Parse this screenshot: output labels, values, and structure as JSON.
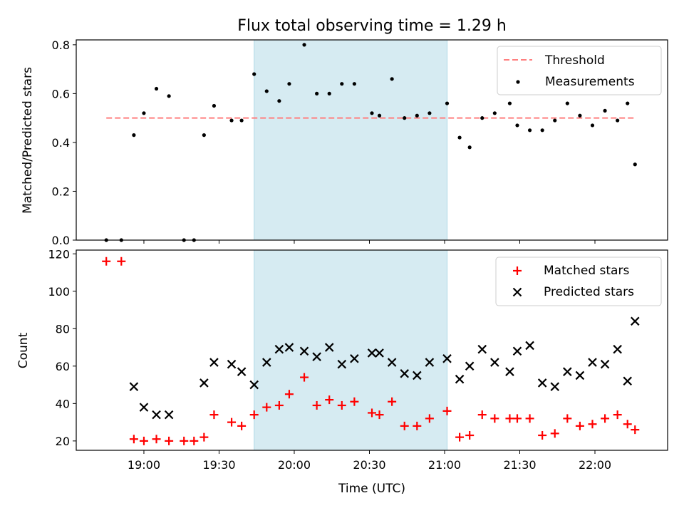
{
  "chart_data": {
    "type": "scatter",
    "title": "Flux total observing time = 1.29 h",
    "xlabel": "Time (UTC)",
    "x_tick_labels": [
      "19:00",
      "19:30",
      "20:00",
      "20:30",
      "21:00",
      "21:30",
      "22:00"
    ],
    "x_range": [
      "18:33",
      "22:29"
    ],
    "highlight_span": [
      "19:44",
      "21:01"
    ],
    "colors": {
      "threshold": "#ff7f7f",
      "measurements": "#000000",
      "matched": "#ff0000",
      "predicted": "#000000",
      "span": "#add8e6"
    },
    "panels": [
      {
        "ylabel": "Matched/Predicted stars",
        "ylim": [
          0,
          0.82
        ],
        "yticks": [
          "0.0",
          "0.2",
          "0.4",
          "0.6",
          "0.8"
        ],
        "legend_position": "top-right",
        "threshold": {
          "name": "Threshold",
          "value": 0.5,
          "x_start": "18:45",
          "x_end": "22:16"
        },
        "series": [
          {
            "name": "Measurements",
            "x": [
              "18:45",
              "18:51",
              "18:56",
              "19:00",
              "19:05",
              "19:10",
              "19:16",
              "19:20",
              "19:24",
              "19:28",
              "19:35",
              "19:39",
              "19:44",
              "19:49",
              "19:54",
              "19:58",
              "20:04",
              "20:09",
              "20:14",
              "20:19",
              "20:24",
              "20:31",
              "20:34",
              "20:39",
              "20:44",
              "20:49",
              "20:54",
              "21:01",
              "21:06",
              "21:10",
              "21:15",
              "21:20",
              "21:26",
              "21:29",
              "21:34",
              "21:39",
              "21:44",
              "21:49",
              "21:54",
              "21:59",
              "22:04",
              "22:09",
              "22:13",
              "22:16"
            ],
            "y": [
              0.0,
              0.0,
              0.43,
              0.52,
              0.62,
              0.59,
              0.0,
              0.0,
              0.43,
              0.55,
              0.49,
              0.49,
              0.68,
              0.61,
              0.57,
              0.64,
              0.8,
              0.6,
              0.6,
              0.64,
              0.64,
              0.52,
              0.51,
              0.66,
              0.5,
              0.51,
              0.52,
              0.56,
              0.42,
              0.38,
              0.5,
              0.52,
              0.56,
              0.47,
              0.45,
              0.45,
              0.49,
              0.56,
              0.51,
              0.47,
              0.53,
              0.49,
              0.56,
              0.31
            ]
          }
        ]
      },
      {
        "ylabel": "Count",
        "ylim": [
          15,
          122
        ],
        "yticks": [
          "20",
          "40",
          "60",
          "80",
          "100",
          "120"
        ],
        "legend_position": "top-right",
        "series": [
          {
            "name": "Matched stars",
            "x": [
              "18:45",
              "18:51",
              "18:56",
              "19:00",
              "19:05",
              "19:10",
              "19:16",
              "19:20",
              "19:24",
              "19:28",
              "19:35",
              "19:39",
              "19:44",
              "19:49",
              "19:54",
              "19:58",
              "20:04",
              "20:09",
              "20:14",
              "20:19",
              "20:24",
              "20:31",
              "20:34",
              "20:39",
              "20:44",
              "20:49",
              "20:54",
              "21:01",
              "21:06",
              "21:10",
              "21:15",
              "21:20",
              "21:26",
              "21:29",
              "21:34",
              "21:39",
              "21:44",
              "21:49",
              "21:54",
              "21:59",
              "22:04",
              "22:09",
              "22:13",
              "22:16"
            ],
            "y": [
              116,
              116,
              21,
              20,
              21,
              20,
              20,
              20,
              22,
              34,
              30,
              28,
              34,
              38,
              39,
              45,
              54,
              39,
              42,
              39,
              41,
              35,
              34,
              41,
              28,
              28,
              32,
              36,
              22,
              23,
              34,
              32,
              32,
              32,
              32,
              23,
              24,
              32,
              28,
              29,
              32,
              34,
              29,
              26
            ]
          },
          {
            "name": "Predicted stars",
            "x": [
              "18:56",
              "19:00",
              "19:05",
              "19:10",
              "19:24",
              "19:28",
              "19:35",
              "19:39",
              "19:44",
              "19:49",
              "19:54",
              "19:58",
              "20:04",
              "20:09",
              "20:14",
              "20:19",
              "20:24",
              "20:31",
              "20:34",
              "20:39",
              "20:44",
              "20:49",
              "20:54",
              "21:01",
              "21:06",
              "21:10",
              "21:15",
              "21:20",
              "21:26",
              "21:29",
              "21:34",
              "21:39",
              "21:44",
              "21:49",
              "21:54",
              "21:59",
              "22:04",
              "22:09",
              "22:13",
              "22:16"
            ],
            "y": [
              49,
              38,
              34,
              34,
              51,
              62,
              61,
              57,
              50,
              62,
              69,
              70,
              68,
              65,
              70,
              61,
              64,
              67,
              67,
              62,
              56,
              55,
              62,
              64,
              53,
              60,
              69,
              62,
              57,
              68,
              71,
              51,
              49,
              57,
              55,
              62,
              61,
              69,
              52,
              84
            ]
          }
        ]
      }
    ]
  }
}
